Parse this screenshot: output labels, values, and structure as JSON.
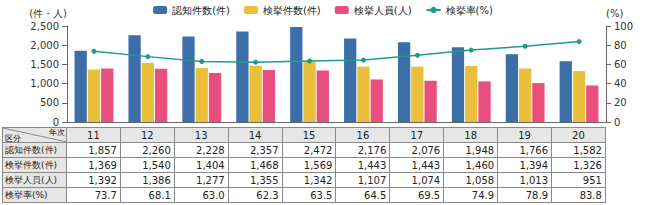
{
  "chart_data": {
    "type": "bar",
    "categories": [
      "11",
      "12",
      "13",
      "14",
      "15",
      "16",
      "17",
      "18",
      "19",
      "20"
    ],
    "xlabel": "年次",
    "table_header": "区分",
    "ylabel": "(件・人)",
    "y2label": "(%)",
    "ylim": [
      0,
      2500
    ],
    "yticks": [
      0,
      500,
      {
        "value": 1000,
        "label": "1,000"
      },
      {
        "value": 1500,
        "label": "1,500"
      },
      {
        "value": 2000,
        "label": "2,000"
      },
      {
        "value": 2500,
        "label": "2,500"
      }
    ],
    "y2lim": [
      0,
      100
    ],
    "y2ticks": [
      0,
      20,
      40,
      60,
      80,
      100
    ],
    "grid": false,
    "legend": "top",
    "series": [
      {
        "name": "認知件数(件)",
        "type": "bar",
        "color": "#3c6fa8",
        "values": [
          1857,
          2260,
          2228,
          2357,
          2472,
          2176,
          2076,
          1948,
          1766,
          1582
        ],
        "value_labels": [
          "1,857",
          "2,260",
          "2,228",
          "2,357",
          "2,472",
          "2,176",
          "2,076",
          "1,948",
          "1,766",
          "1,582"
        ]
      },
      {
        "name": "検挙件数(件)",
        "type": "bar",
        "color": "#e9bf3c",
        "values": [
          1369,
          1540,
          1404,
          1468,
          1569,
          1443,
          1443,
          1460,
          1394,
          1326
        ],
        "value_labels": [
          "1,369",
          "1,540",
          "1,404",
          "1,468",
          "1,569",
          "1,443",
          "1,443",
          "1,460",
          "1,394",
          "1,326"
        ]
      },
      {
        "name": "検挙人員(人)",
        "type": "bar",
        "color": "#e94f7c",
        "values": [
          1392,
          1386,
          1277,
          1355,
          1342,
          1107,
          1074,
          1058,
          1013,
          951
        ],
        "value_labels": [
          "1,392",
          "1,386",
          "1,277",
          "1,355",
          "1,342",
          "1,107",
          "1,074",
          "1,058",
          "1,013",
          "951"
        ]
      },
      {
        "name": "検挙率(%)",
        "type": "line",
        "axis": "y2",
        "color": "#1f9a8c",
        "marker": "circle",
        "values": [
          73.7,
          68.1,
          63.0,
          62.3,
          63.5,
          64.5,
          69.5,
          74.9,
          78.9,
          83.8
        ],
        "value_labels": [
          "73.7",
          "68.1",
          "63.0",
          "62.3",
          "63.5",
          "64.5",
          "69.5",
          "74.9",
          "78.9",
          "83.8"
        ]
      }
    ]
  }
}
